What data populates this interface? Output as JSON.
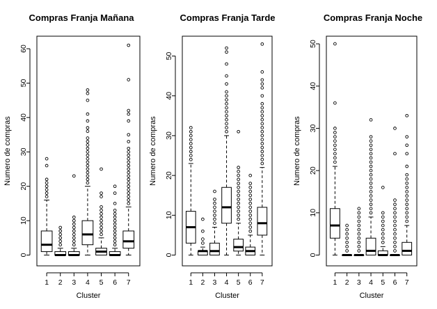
{
  "chart_data": [
    {
      "type": "box",
      "title": "Compras Franja Mañana",
      "xlabel": "Cluster",
      "ylabel": "Numero de compras",
      "ylim": [
        0,
        61
      ],
      "yticks": [
        0,
        10,
        20,
        30,
        40,
        50,
        60
      ],
      "categories": [
        "1",
        "2",
        "3",
        "4",
        "5",
        "6",
        "7"
      ],
      "boxes": [
        {
          "q1": 1,
          "median": 3,
          "q3": 7,
          "whisker_low": 0,
          "whisker_high": 16,
          "outliers": [
            17,
            18,
            19,
            20,
            21,
            22,
            26,
            28
          ]
        },
        {
          "q1": 0,
          "median": 0,
          "q3": 1,
          "whisker_low": 0,
          "whisker_high": 2,
          "outliers": [
            3,
            4,
            5,
            6,
            7,
            8
          ]
        },
        {
          "q1": 0,
          "median": 0,
          "q3": 1,
          "whisker_low": 0,
          "whisker_high": 2,
          "outliers": [
            3,
            4,
            5,
            6,
            7,
            8,
            9,
            10,
            11,
            23
          ]
        },
        {
          "q1": 3,
          "median": 6,
          "q3": 10,
          "whisker_low": 0,
          "whisker_high": 20,
          "outliers": [
            21,
            22,
            23,
            24,
            25,
            26,
            27,
            28,
            29,
            30,
            31,
            32,
            33,
            34,
            36,
            37,
            39,
            41,
            45,
            47,
            48
          ]
        },
        {
          "q1": 0,
          "median": 1,
          "q3": 2,
          "whisker_low": 0,
          "whisker_high": 5,
          "outliers": [
            6,
            7,
            8,
            9,
            10,
            11,
            12,
            13,
            14,
            17,
            18,
            25
          ]
        },
        {
          "q1": 0,
          "median": 0,
          "q3": 1,
          "whisker_low": 0,
          "whisker_high": 2,
          "outliers": [
            3,
            4,
            5,
            6,
            7,
            8,
            9,
            10,
            11,
            12,
            13,
            15,
            18,
            20
          ]
        },
        {
          "q1": 2,
          "median": 4,
          "q3": 7,
          "whisker_low": 0,
          "whisker_high": 14,
          "outliers": [
            15,
            16,
            17,
            18,
            19,
            20,
            21,
            22,
            23,
            24,
            25,
            26,
            27,
            28,
            29,
            30,
            31,
            33,
            35,
            39,
            41,
            42,
            51,
            61
          ]
        }
      ]
    },
    {
      "type": "box",
      "title": "Compras Franja Tarde",
      "xlabel": "Cluster",
      "ylabel": "Numero de compras",
      "ylim": [
        0,
        53
      ],
      "yticks": [
        0,
        10,
        20,
        30,
        40,
        50
      ],
      "categories": [
        "1",
        "2",
        "3",
        "4",
        "5",
        "6",
        "7"
      ],
      "boxes": [
        {
          "q1": 3,
          "median": 7,
          "q3": 11,
          "whisker_low": 0,
          "whisker_high": 23,
          "outliers": [
            24,
            25,
            26,
            27,
            28,
            29,
            30,
            31,
            32
          ]
        },
        {
          "q1": 0,
          "median": 1,
          "q3": 1,
          "whisker_low": 0,
          "whisker_high": 2,
          "outliers": [
            3,
            4,
            6,
            9
          ]
        },
        {
          "q1": 0,
          "median": 1,
          "q3": 3,
          "whisker_low": 0,
          "whisker_high": 7,
          "outliers": [
            8,
            9,
            10,
            11,
            12,
            13,
            14,
            16
          ]
        },
        {
          "q1": 8,
          "median": 12,
          "q3": 17,
          "whisker_low": 0,
          "whisker_high": 30,
          "outliers": [
            31,
            32,
            33,
            34,
            35,
            36,
            37,
            38,
            39,
            40,
            41,
            43,
            45,
            48,
            51,
            52
          ]
        },
        {
          "q1": 1,
          "median": 2,
          "q3": 4,
          "whisker_low": 0,
          "whisker_high": 8,
          "outliers": [
            9,
            10,
            11,
            12,
            13,
            14,
            15,
            16,
            17,
            18,
            19,
            20,
            21,
            22,
            31
          ]
        },
        {
          "q1": 0,
          "median": 1,
          "q3": 2,
          "whisker_low": 0,
          "whisker_high": 5,
          "outliers": [
            6,
            7,
            8,
            9,
            10,
            11,
            12,
            13,
            14,
            15,
            16,
            17,
            18,
            20
          ]
        },
        {
          "q1": 5,
          "median": 8,
          "q3": 12,
          "whisker_low": 0,
          "whisker_high": 22,
          "outliers": [
            23,
            24,
            25,
            26,
            27,
            28,
            29,
            30,
            31,
            32,
            33,
            34,
            35,
            36,
            37,
            38,
            40,
            42,
            43,
            44,
            46,
            53
          ]
        }
      ]
    },
    {
      "type": "box",
      "title": "Compras Franja Noche",
      "xlabel": "Cluster",
      "ylabel": "Numero de compras",
      "ylim": [
        0,
        50
      ],
      "yticks": [
        0,
        10,
        20,
        30,
        40,
        50
      ],
      "categories": [
        "1",
        "2",
        "3",
        "4",
        "5",
        "6",
        "7"
      ],
      "boxes": [
        {
          "q1": 4,
          "median": 7,
          "q3": 11,
          "whisker_low": 0,
          "whisker_high": 21,
          "outliers": [
            22,
            23,
            24,
            25,
            26,
            27,
            28,
            29,
            30,
            36,
            50
          ]
        },
        {
          "q1": 0,
          "median": 0,
          "q3": 0,
          "whisker_low": 0,
          "whisker_high": 0,
          "outliers": [
            1,
            2,
            3,
            4,
            5,
            6,
            7
          ]
        },
        {
          "q1": 0,
          "median": 0,
          "q3": 0,
          "whisker_low": 0,
          "whisker_high": 0,
          "outliers": [
            1,
            2,
            3,
            4,
            5,
            6,
            7,
            8,
            9,
            10,
            11
          ]
        },
        {
          "q1": 0,
          "median": 1,
          "q3": 4,
          "whisker_low": 0,
          "whisker_high": 9,
          "outliers": [
            10,
            11,
            12,
            13,
            14,
            15,
            16,
            17,
            18,
            19,
            20,
            21,
            22,
            23,
            24,
            25,
            26,
            27,
            28,
            32
          ]
        },
        {
          "q1": 0,
          "median": 0,
          "q3": 1,
          "whisker_low": 0,
          "whisker_high": 2,
          "outliers": [
            3,
            4,
            5,
            6,
            7,
            8,
            9,
            10,
            16
          ]
        },
        {
          "q1": 0,
          "median": 0,
          "q3": 0,
          "whisker_low": 0,
          "whisker_high": 0,
          "outliers": [
            1,
            2,
            3,
            4,
            5,
            6,
            7,
            8,
            9,
            10,
            11,
            12,
            13,
            24,
            30
          ]
        },
        {
          "q1": 0,
          "median": 1,
          "q3": 3,
          "whisker_low": 0,
          "whisker_high": 7,
          "outliers": [
            8,
            9,
            10,
            11,
            12,
            13,
            14,
            15,
            16,
            17,
            18,
            19,
            21,
            24,
            26,
            28,
            33
          ]
        }
      ]
    }
  ]
}
